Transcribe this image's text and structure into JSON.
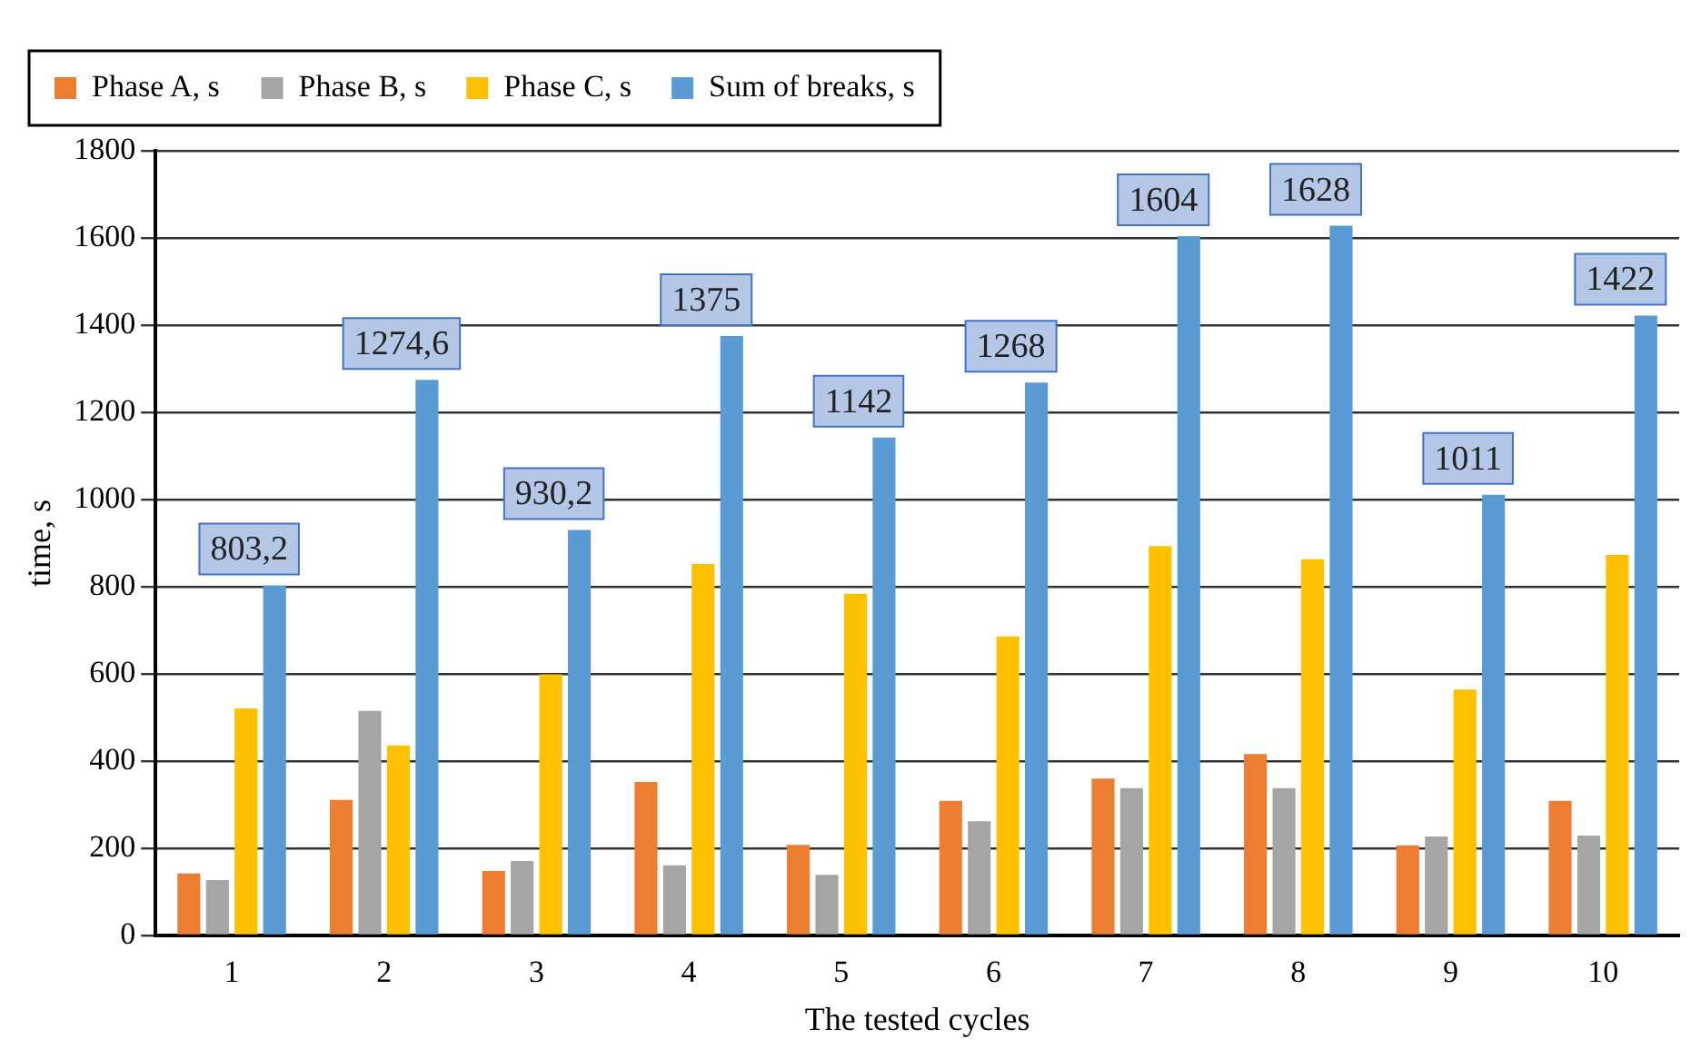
{
  "chart_data": {
    "type": "bar",
    "xlabel": "The tested cycles",
    "ylabel": "time, s",
    "categories": [
      "1",
      "2",
      "3",
      "4",
      "5",
      "6",
      "7",
      "8",
      "9",
      "10"
    ],
    "series": [
      {
        "name": "Phase A, s",
        "color": "#ed7d31",
        "values": [
          142,
          311,
          148,
          352,
          208,
          309,
          360,
          416,
          207,
          309
        ]
      },
      {
        "name": "Phase B, s",
        "color": "#a5a5a5",
        "values": [
          127,
          515,
          171,
          161,
          139,
          262,
          338,
          338,
          227,
          229
        ]
      },
      {
        "name": "Phase C, s",
        "color": "#ffc000",
        "values": [
          521,
          436,
          599,
          852,
          784,
          686,
          893,
          863,
          564,
          873
        ]
      },
      {
        "name": "Sum of breaks, s",
        "color": "#5b9bd5",
        "values": [
          803.2,
          1274.6,
          930.2,
          1375,
          1142,
          1268,
          1604,
          1628,
          1011,
          1422
        ],
        "value_labels": [
          "803,2",
          "1274,6",
          "930,2",
          "1375",
          "1142",
          "1268",
          "1604",
          "1628",
          "1011",
          "1422"
        ]
      }
    ],
    "ylim": [
      0,
      1800
    ],
    "yticks": [
      0,
      200,
      400,
      600,
      800,
      1000,
      1200,
      1400,
      1600,
      1800
    ],
    "grid": "y",
    "legend": "top"
  }
}
